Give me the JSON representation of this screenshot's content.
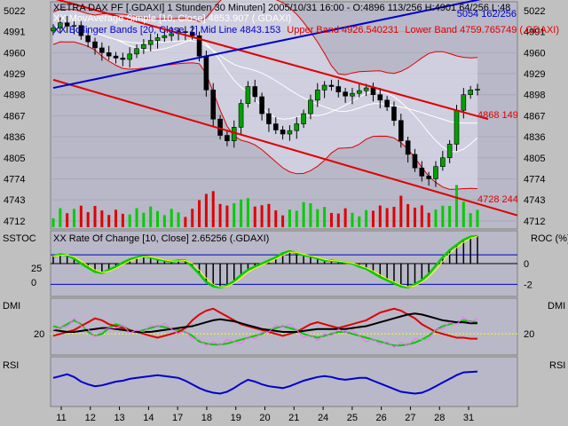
{
  "header": {
    "line1": "XETRA DAX PF [.GDAXI] 1 Stunden 30 Minuten] 2005/10/31 16:00 - O:4896 113/256 H:4901 64/256 L:48",
    "line2": "XX MovAverage Simple [10, Close] 4853.907 (.GDAXI)",
    "line3_bb": "XX Bollinger Bands [20, Close, 2] Mid Line 4843.153",
    "line3_upper": "Upper Band 4926.540231",
    "line3_lower": "Lower Band 4759.765749 (.GDAXI)",
    "channel_top_value": "5054 162/256"
  },
  "colors": {
    "panel_bg": "#b8b8c8",
    "price_up": "#008000",
    "price_down": "#c00000",
    "channel": "#e00000",
    "trendline": "#0000cc",
    "bollinger": "#e00000",
    "ma": "#ffffff",
    "roc": "#00cc00",
    "rsi": "#0000cc",
    "dmi_plus": "#00cc00",
    "dmi_minus": "#e00000",
    "adx": "#000000"
  },
  "chart_data": [
    {
      "type": "candlestick",
      "name": "price",
      "y_axis": [
        "5022",
        "4991",
        "4960",
        "4929",
        "4898",
        "4867",
        "4836",
        "4805",
        "4774",
        "4743",
        "4712"
      ],
      "ylim": [
        4700,
        5035
      ],
      "x_axis": [
        "11",
        "12",
        "13",
        "14",
        "17",
        "18",
        "19",
        "20",
        "21",
        "24",
        "25",
        "26",
        "27",
        "28",
        "31"
      ],
      "annotations": {
        "channel_upper_label": "4868 149",
        "channel_lower_label": "4728 244"
      },
      "close": [
        4996,
        5004,
        4999,
        5000,
        4985,
        4976,
        4967,
        4960,
        4955,
        4952,
        4950,
        4958,
        4966,
        4972,
        4978,
        4982,
        4985,
        4988,
        4991,
        4990,
        4985,
        4955,
        4905,
        4862,
        4838,
        4830,
        4850,
        4885,
        4910,
        4895,
        4870,
        4855,
        4846,
        4840,
        4845,
        4855,
        4870,
        4890,
        4905,
        4912,
        4910,
        4902,
        4896,
        4900,
        4904,
        4908,
        4898,
        4890,
        4880,
        4860,
        4830,
        4810,
        4790,
        4778,
        4774,
        4792,
        4805,
        4825,
        4875,
        4898,
        4905,
        4906
      ]
    },
    {
      "type": "line",
      "name": "roc",
      "label": "XX Rate Of Change [10, Close] 2.65256 (.GDAXI)",
      "y_left": [
        "25",
        "0"
      ],
      "y_right": [
        "ROC (%)",
        "0",
        "-2"
      ],
      "values": [
        0.7,
        0.9,
        0.8,
        0.5,
        0.0,
        -0.4,
        -0.8,
        -0.9,
        -0.6,
        -0.3,
        0.1,
        0.4,
        0.6,
        0.7,
        0.6,
        0.4,
        0.3,
        0.2,
        0.3,
        0.3,
        -0.3,
        -1.0,
        -1.8,
        -2.2,
        -2.3,
        -2.1,
        -1.7,
        -1.1,
        -0.6,
        -0.3,
        0.0,
        0.3,
        0.6,
        1.0,
        1.2,
        1.0,
        0.8,
        0.7,
        0.5,
        0.3,
        0.3,
        0.2,
        0.1,
        0.0,
        -0.3,
        -0.5,
        -0.9,
        -1.3,
        -1.6,
        -1.9,
        -2.2,
        -2.3,
        -2.0,
        -1.6,
        -1.0,
        -0.2,
        0.6,
        1.3,
        1.8,
        2.3,
        2.6,
        2.65
      ]
    },
    {
      "type": "line",
      "name": "dmi",
      "y_left": [
        "20"
      ],
      "y_right": [
        "DMI",
        "20"
      ],
      "ylim": [
        0,
        55
      ],
      "series": [
        {
          "name": "+DI",
          "values": [
            28,
            26,
            30,
            34,
            30,
            22,
            18,
            20,
            26,
            30,
            28,
            24,
            22,
            24,
            26,
            28,
            27,
            25,
            24,
            22,
            18,
            12,
            10,
            9,
            9,
            10,
            12,
            14,
            16,
            18,
            20,
            24,
            26,
            28,
            26,
            24,
            20,
            18,
            16,
            18,
            20,
            22,
            22,
            20,
            18,
            16,
            14,
            12,
            10,
            8,
            8,
            9,
            11,
            14,
            18,
            24,
            28,
            30,
            32,
            34,
            33,
            32
          ]
        },
        {
          "name": "-DI",
          "values": [
            18,
            20,
            22,
            24,
            28,
            32,
            36,
            34,
            30,
            28,
            26,
            24,
            22,
            20,
            18,
            16,
            18,
            20,
            22,
            26,
            34,
            40,
            44,
            46,
            42,
            38,
            34,
            30,
            28,
            26,
            24,
            22,
            20,
            18,
            20,
            22,
            26,
            30,
            32,
            30,
            28,
            26,
            28,
            30,
            32,
            34,
            38,
            42,
            44,
            46,
            44,
            40,
            36,
            30,
            26,
            22,
            20,
            18,
            16,
            16,
            15,
            15
          ]
        },
        {
          "name": "ADX",
          "values": [
            24,
            23,
            22,
            22,
            23,
            24,
            25,
            26,
            26,
            25,
            24,
            23,
            22,
            22,
            22,
            23,
            24,
            25,
            26,
            27,
            28,
            30,
            32,
            34,
            35,
            34,
            33,
            31,
            29,
            27,
            25,
            24,
            23,
            22,
            22,
            22,
            23,
            24,
            25,
            25,
            25,
            25,
            25,
            26,
            27,
            28,
            30,
            32,
            34,
            36,
            38,
            40,
            41,
            40,
            38,
            36,
            34,
            33,
            32,
            32,
            31,
            31
          ]
        }
      ]
    },
    {
      "type": "line",
      "name": "rsi",
      "y_right": [
        "RSI"
      ],
      "y_left": [
        "RSI"
      ],
      "ylim": [
        0,
        100
      ],
      "values": [
        58,
        62,
        66,
        60,
        50,
        44,
        40,
        42,
        46,
        50,
        52,
        56,
        58,
        60,
        62,
        64,
        62,
        60,
        58,
        52,
        44,
        36,
        30,
        26,
        24,
        28,
        36,
        46,
        54,
        50,
        44,
        40,
        38,
        36,
        40,
        46,
        52,
        56,
        60,
        62,
        60,
        56,
        54,
        56,
        58,
        58,
        52,
        46,
        40,
        34,
        28,
        26,
        24,
        26,
        32,
        40,
        48,
        56,
        64,
        70,
        71,
        72
      ]
    }
  ],
  "x_ticks": [
    "11",
    "12",
    "13",
    "14",
    "17",
    "18",
    "19",
    "20",
    "21",
    "24",
    "25",
    "26",
    "27",
    "28",
    "31"
  ]
}
